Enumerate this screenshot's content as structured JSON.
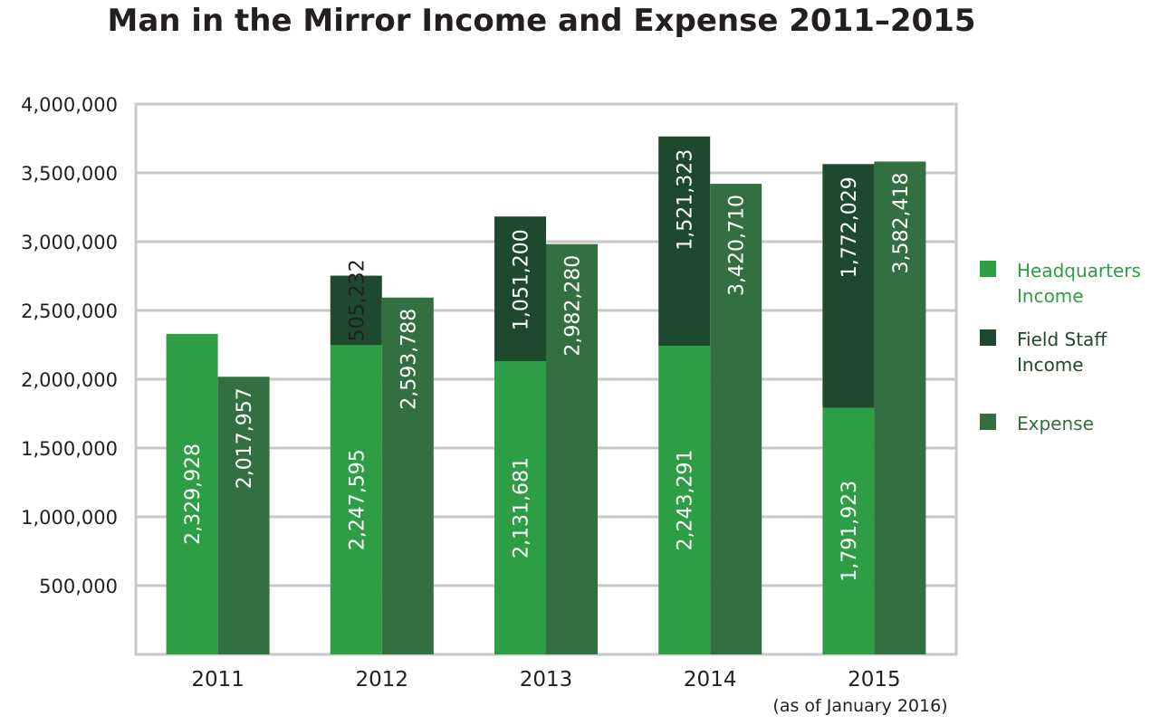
{
  "chart_data": {
    "type": "bar",
    "stacked": true,
    "title": "Man in the Mirror Income and Expense 2011–2015",
    "categories": [
      "2011",
      "2012",
      "2013",
      "2014",
      "2015"
    ],
    "category_note": "(as of January 2016)",
    "ylim": [
      0,
      4000000
    ],
    "yticks": [
      500000,
      1000000,
      1500000,
      2000000,
      2500000,
      3000000,
      3500000,
      4000000
    ],
    "ytick_labels": [
      "500,000",
      "1,000,000",
      "1,500,000",
      "2,000,000",
      "2,500,000",
      "3,000,000",
      "3,500,000",
      "4,000,000"
    ],
    "grid": true,
    "legend_position": "right",
    "series": [
      {
        "name": "Headquarters Income",
        "stack": "income",
        "color": "#2e9e46",
        "values": [
          2329928,
          2247595,
          2131681,
          2243291,
          1791923
        ],
        "labels": [
          "2,329,928",
          "2,247,595",
          "2,131,681",
          "2,243,291",
          "1,791,923"
        ]
      },
      {
        "name": "Field Staff Income",
        "stack": "income",
        "color": "#1d4a2d",
        "values": [
          0,
          505232,
          1051200,
          1521323,
          1772029
        ],
        "labels": [
          "",
          "505,232",
          "1,051,200",
          "1,521,323",
          "1,772,029"
        ]
      },
      {
        "name": "Expense",
        "stack": "expense",
        "color": "#336f41",
        "values": [
          2017957,
          2593788,
          2982280,
          3420710,
          3582418
        ],
        "labels": [
          "2,017,957",
          "2,593,788",
          "2,982,280",
          "3,420,710",
          "3,582,418"
        ]
      }
    ],
    "legend": [
      {
        "line1": "Headquarters",
        "line2": "Income",
        "color": "#2e9e46",
        "text_color": "#2e9e46"
      },
      {
        "line1": "Field Staff",
        "line2": "Income",
        "color": "#1d4a2d",
        "text_color": "#1d4a2d"
      },
      {
        "line1": "Expense",
        "line2": "",
        "color": "#336f41",
        "text_color": "#336f41"
      }
    ]
  }
}
